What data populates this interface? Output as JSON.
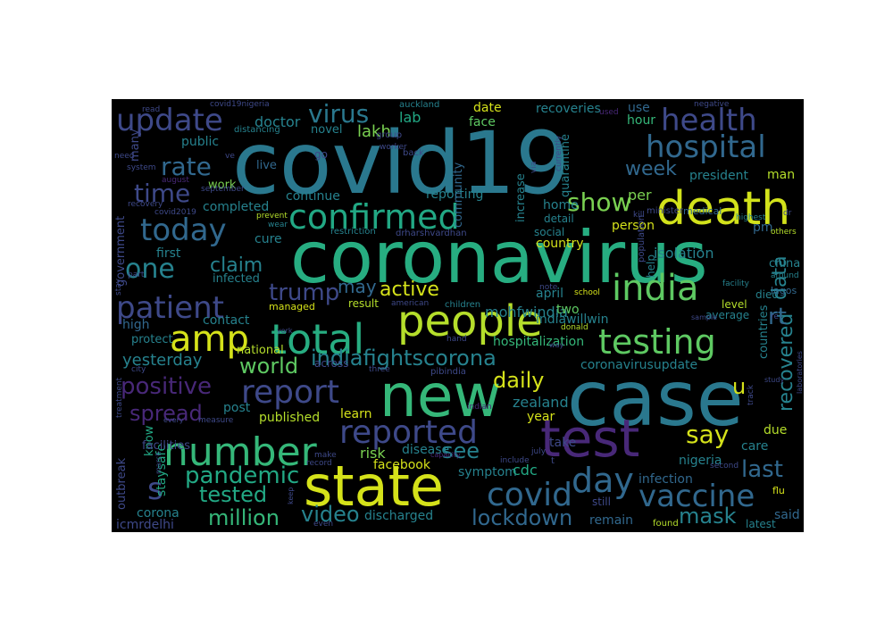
{
  "wordcloud": {
    "background": "#000000",
    "palette": "viridis",
    "words": [
      {
        "text": "covid19",
        "color": "#2a788e"
      },
      {
        "text": "coronavirus",
        "color": "#27ad81"
      },
      {
        "text": "case",
        "color": "#2a788e"
      },
      {
        "text": "new",
        "color": "#35b779"
      },
      {
        "text": "state",
        "color": "#d5e21a"
      },
      {
        "text": "test",
        "color": "#482878"
      },
      {
        "text": "death",
        "color": "#d2e21b"
      },
      {
        "text": "people",
        "color": "#b5de2b"
      },
      {
        "text": "number",
        "color": "#35b779"
      },
      {
        "text": "total",
        "color": "#27ad81"
      },
      {
        "text": "india",
        "color": "#5ec962"
      },
      {
        "text": "confirmed",
        "color": "#22a884"
      },
      {
        "text": "testing",
        "color": "#5ec962"
      },
      {
        "text": "update",
        "color": "#3e4989"
      },
      {
        "text": "health",
        "color": "#3e4989"
      },
      {
        "text": "hospital",
        "color": "#31688e"
      },
      {
        "text": "today",
        "color": "#31688e"
      },
      {
        "text": "patient",
        "color": "#3e4989"
      },
      {
        "text": "amp",
        "color": "#d5e21a"
      },
      {
        "text": "reported",
        "color": "#3e4989"
      },
      {
        "text": "day",
        "color": "#31688e"
      },
      {
        "text": "report",
        "color": "#3e4989"
      },
      {
        "text": "covid",
        "color": "#31688e"
      },
      {
        "text": "vaccine",
        "color": "#31688e"
      },
      {
        "text": "indiafightscorona",
        "color": "#26828e"
      },
      {
        "text": "say",
        "color": "#d5e21a"
      },
      {
        "text": "one",
        "color": "#26828e"
      },
      {
        "text": "rate",
        "color": "#31688e"
      },
      {
        "text": "time",
        "color": "#3e4989"
      },
      {
        "text": "show",
        "color": "#7ad151"
      },
      {
        "text": "pandemic",
        "color": "#22a884"
      },
      {
        "text": "s",
        "color": "#3e4989"
      },
      {
        "text": "virus",
        "color": "#2a788e"
      },
      {
        "text": "trump",
        "color": "#3e4989"
      },
      {
        "text": "world",
        "color": "#5ec962"
      },
      {
        "text": "spread",
        "color": "#482878"
      },
      {
        "text": "positive",
        "color": "#482878"
      },
      {
        "text": "lockdown",
        "color": "#31688e"
      },
      {
        "text": "million",
        "color": "#35b779"
      },
      {
        "text": "video",
        "color": "#26828e"
      },
      {
        "text": "mask",
        "color": "#26828e"
      },
      {
        "text": "tested",
        "color": "#22a884"
      },
      {
        "text": "recovered",
        "color": "#26828e"
      },
      {
        "text": "daily",
        "color": "#d5e21a"
      },
      {
        "text": "active",
        "color": "#d5e21a"
      },
      {
        "text": "claim",
        "color": "#26828e"
      },
      {
        "text": "week",
        "color": "#31688e"
      },
      {
        "text": "last",
        "color": "#31688e"
      },
      {
        "text": "rt",
        "color": "#31688e"
      },
      {
        "text": "data",
        "color": "#26828e"
      },
      {
        "text": "u",
        "color": "#d5e21a"
      },
      {
        "text": "see",
        "color": "#26828e"
      },
      {
        "text": "may",
        "color": "#31688e"
      },
      {
        "text": "yesterday",
        "color": "#26828e"
      },
      {
        "text": "lakh",
        "color": "#7ad151"
      },
      {
        "text": "doctor",
        "color": "#26828e"
      },
      {
        "text": "public",
        "color": "#26828e"
      },
      {
        "text": "lab",
        "color": "#22a884"
      },
      {
        "text": "recoveries",
        "color": "#26828e"
      },
      {
        "text": "date",
        "color": "#d5e21a"
      },
      {
        "text": "face",
        "color": "#5ec962"
      },
      {
        "text": "use",
        "color": "#31688e"
      },
      {
        "text": "hour",
        "color": "#35b779"
      },
      {
        "text": "president",
        "color": "#26828e"
      },
      {
        "text": "man",
        "color": "#b5de2b"
      },
      {
        "text": "per",
        "color": "#7ad151"
      },
      {
        "text": "pm",
        "color": "#31688e"
      },
      {
        "text": "isolation",
        "color": "#26828e"
      },
      {
        "text": "country",
        "color": "#d5e21a"
      },
      {
        "text": "mohfwindia",
        "color": "#26828e"
      },
      {
        "text": "two",
        "color": "#5ec962"
      },
      {
        "text": "april",
        "color": "#26828e"
      },
      {
        "text": "indiawillwin",
        "color": "#26828e"
      },
      {
        "text": "hospitalization",
        "color": "#35b779"
      },
      {
        "text": "coronavirusupdate",
        "color": "#26828e"
      },
      {
        "text": "zealand",
        "color": "#26828e"
      },
      {
        "text": "year",
        "color": "#d5e21a"
      },
      {
        "text": "learn",
        "color": "#d5e21a"
      },
      {
        "text": "published",
        "color": "#b5de2b"
      },
      {
        "text": "post",
        "color": "#26828e"
      },
      {
        "text": "risk",
        "color": "#7ad151"
      },
      {
        "text": "disease",
        "color": "#26828e"
      },
      {
        "text": "take",
        "color": "#3e4989"
      },
      {
        "text": "care",
        "color": "#26828e"
      },
      {
        "text": "due",
        "color": "#b5de2b"
      },
      {
        "text": "nigeria",
        "color": "#26828e"
      },
      {
        "text": "infection",
        "color": "#31688e"
      },
      {
        "text": "symptom",
        "color": "#26828e"
      },
      {
        "text": "cdc",
        "color": "#22a884"
      },
      {
        "text": "facebook",
        "color": "#d5e21a"
      },
      {
        "text": "discharged",
        "color": "#26828e"
      },
      {
        "text": "remain",
        "color": "#31688e"
      },
      {
        "text": "said",
        "color": "#31688e"
      },
      {
        "text": "latest",
        "color": "#26828e"
      },
      {
        "text": "found",
        "color": "#b5de2b"
      },
      {
        "text": "corona",
        "color": "#26828e"
      },
      {
        "text": "icmrdelhi",
        "color": "#3e4989"
      },
      {
        "text": "staysafe",
        "color": "#22a884"
      },
      {
        "text": "know",
        "color": "#22a884"
      },
      {
        "text": "facilities",
        "color": "#3e4989"
      },
      {
        "text": "protect",
        "color": "#26828e"
      },
      {
        "text": "high",
        "color": "#31688e"
      },
      {
        "text": "contact",
        "color": "#26828e"
      },
      {
        "text": "national",
        "color": "#b5de2b"
      },
      {
        "text": "infected",
        "color": "#26828e"
      },
      {
        "text": "first",
        "color": "#26828e"
      },
      {
        "text": "cure",
        "color": "#26828e"
      },
      {
        "text": "completed",
        "color": "#26828e"
      },
      {
        "text": "continue",
        "color": "#26828e"
      },
      {
        "text": "reporting",
        "color": "#26828e"
      },
      {
        "text": "government",
        "color": "#3e4989"
      },
      {
        "text": "work",
        "color": "#7ad151"
      },
      {
        "text": "live",
        "color": "#31688e"
      },
      {
        "text": "community",
        "color": "#31688e"
      },
      {
        "text": "increase",
        "color": "#26828e"
      },
      {
        "text": "quarantine",
        "color": "#26828e"
      },
      {
        "text": "home",
        "color": "#26828e"
      },
      {
        "text": "detail",
        "color": "#26828e"
      },
      {
        "text": "social",
        "color": "#26828e"
      },
      {
        "text": "person",
        "color": "#d5e21a"
      },
      {
        "text": "help",
        "color": "#26828e"
      },
      {
        "text": "china",
        "color": "#26828e"
      },
      {
        "text": "died",
        "color": "#26828e"
      },
      {
        "text": "level",
        "color": "#b5de2b"
      },
      {
        "text": "average",
        "color": "#26828e"
      },
      {
        "text": "countries",
        "color": "#26828e"
      },
      {
        "text": "many",
        "color": "#3e4989"
      },
      {
        "text": "outbreak",
        "color": "#3e4989"
      },
      {
        "text": "novel",
        "color": "#26828e"
      },
      {
        "text": "distancing",
        "color": "#26828e"
      },
      {
        "text": "result",
        "color": "#b5de2b"
      },
      {
        "text": "children",
        "color": "#26828e"
      },
      {
        "text": "managed",
        "color": "#d5e21a"
      },
      {
        "text": "medical",
        "color": "#31688e"
      },
      {
        "text": "school",
        "color": "#d5e21a"
      },
      {
        "text": "donald",
        "color": "#b5de2b"
      },
      {
        "text": "others",
        "color": "#b5de2b"
      },
      {
        "text": "lagos",
        "color": "#31688e"
      },
      {
        "text": "around",
        "color": "#26828e"
      },
      {
        "text": "facility",
        "color": "#26828e"
      },
      {
        "text": "flu",
        "color": "#d5e21a"
      },
      {
        "text": "still",
        "color": "#3e4989"
      },
      {
        "text": "across",
        "color": "#3e4989"
      },
      {
        "text": "three",
        "color": "#3e4989"
      },
      {
        "text": "pibindia",
        "color": "#3e4989"
      },
      {
        "text": "indian",
        "color": "#482878"
      },
      {
        "text": "drharshvardhan",
        "color": "#3e4989"
      },
      {
        "text": "restriction",
        "color": "#26828e"
      },
      {
        "text": "american",
        "color": "#3e4989"
      },
      {
        "text": "minister",
        "color": "#3e4989"
      },
      {
        "text": "population",
        "color": "#3e4989"
      },
      {
        "text": "kill",
        "color": "#3e4989"
      },
      {
        "text": "highest",
        "color": "#26828e"
      },
      {
        "text": "prevent",
        "color": "#b5de2b"
      },
      {
        "text": "wear",
        "color": "#26828e"
      },
      {
        "text": "july",
        "color": "#3e4989"
      },
      {
        "text": "include",
        "color": "#3e4989"
      },
      {
        "text": "via",
        "color": "#3e4989"
      },
      {
        "text": "group",
        "color": "#3e4989"
      },
      {
        "text": "worker",
        "color": "#3e4989"
      },
      {
        "text": "currently",
        "color": "#3e4989"
      },
      {
        "text": "note",
        "color": "#3e4989"
      },
      {
        "text": "back",
        "color": "#3e4989"
      },
      {
        "text": "go",
        "color": "#3e4989"
      },
      {
        "text": "auckland",
        "color": "#26828e"
      },
      {
        "text": "read",
        "color": "#3e4989"
      },
      {
        "text": "covid19nigeria",
        "color": "#3e4989"
      },
      {
        "text": "negative",
        "color": "#3e4989"
      },
      {
        "text": "used",
        "color": "#482878"
      },
      {
        "text": "need",
        "color": "#3e4989"
      },
      {
        "text": "system",
        "color": "#3e4989"
      },
      {
        "text": "august",
        "color": "#482878"
      },
      {
        "text": "september",
        "color": "#3e4989"
      },
      {
        "text": "recovery",
        "color": "#3e4989"
      },
      {
        "text": "covid2019",
        "color": "#3e4989"
      },
      {
        "text": "part",
        "color": "#3e4989"
      },
      {
        "text": "stay",
        "color": "#3e4989"
      },
      {
        "text": "city",
        "color": "#3e4989"
      },
      {
        "text": "treatment",
        "color": "#3e4989"
      },
      {
        "text": "every",
        "color": "#3e4989"
      },
      {
        "text": "measure",
        "color": "#3e4989"
      },
      {
        "text": "record",
        "color": "#3e4989"
      },
      {
        "text": "make",
        "color": "#3e4989"
      },
      {
        "text": "even",
        "color": "#3e4989"
      },
      {
        "text": "keep",
        "color": "#3e4989"
      },
      {
        "text": "march",
        "color": "#3e4989"
      },
      {
        "text": "capacity",
        "color": "#482878"
      },
      {
        "text": "way",
        "color": "#3e4989"
      },
      {
        "text": "hand",
        "color": "#3e4989"
      },
      {
        "text": "york",
        "color": "#3e4989"
      },
      {
        "text": "sample",
        "color": "#3e4989"
      },
      {
        "text": "second",
        "color": "#3e4989"
      },
      {
        "text": "study",
        "color": "#3e4989"
      },
      {
        "text": "track",
        "color": "#3e4989"
      },
      {
        "text": "laboratories",
        "color": "#3e4989"
      },
      {
        "text": "ve",
        "color": "#3e4989"
      },
      {
        "text": "t",
        "color": "#3e4989"
      },
      {
        "text": "re",
        "color": "#3e4989"
      },
      {
        "text": "dr",
        "color": "#3e4989"
      }
    ]
  }
}
